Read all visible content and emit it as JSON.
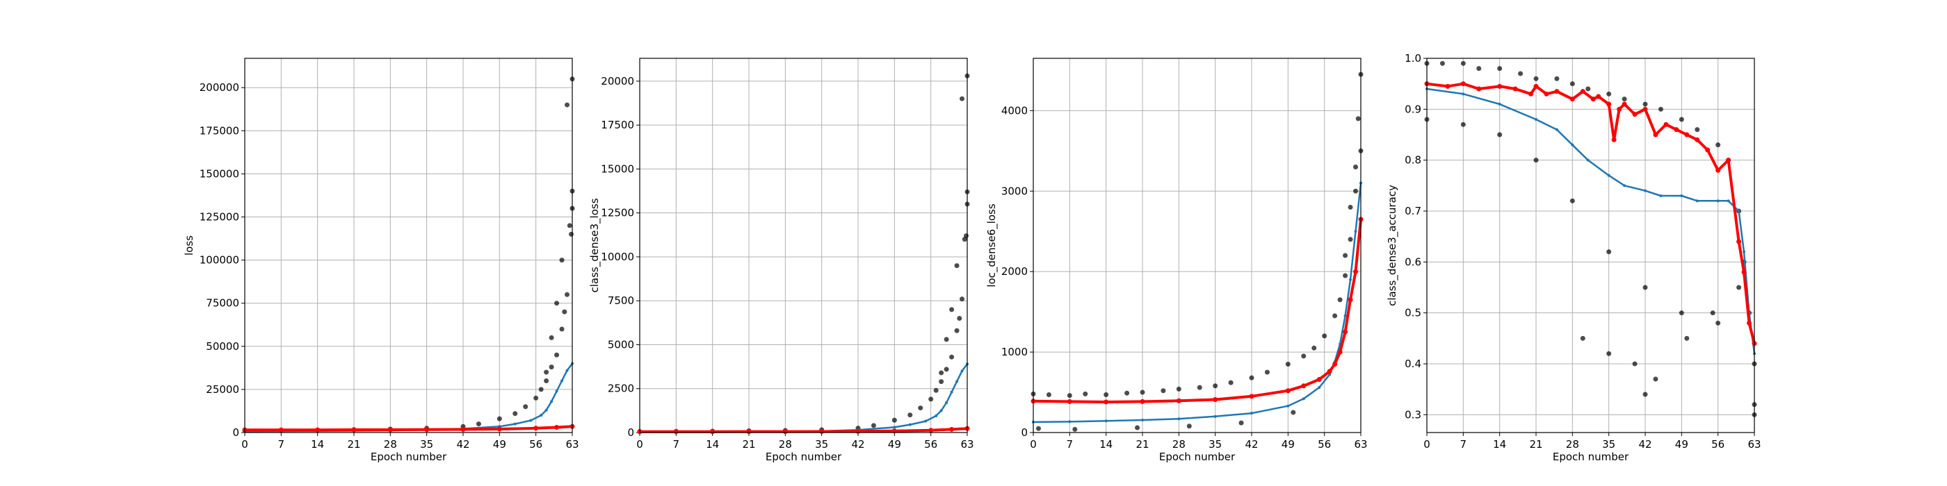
{
  "chart_data": [
    {
      "type": "scatter",
      "ylabel": "loss",
      "xlabel": "Epoch number",
      "xlim": [
        0,
        63
      ],
      "ylim": [
        0,
        217000
      ],
      "xticks": [
        "0",
        "7",
        "14",
        "21",
        "28",
        "35",
        "42",
        "49",
        "56",
        "63"
      ],
      "yticks": [
        "0",
        "25000",
        "50000",
        "75000",
        "100000",
        "125000",
        "150000",
        "175000",
        "200000"
      ],
      "grid": true,
      "series": [
        {
          "kind": "scatter",
          "color": "#000000",
          "x": [
            0,
            7,
            14,
            21,
            28,
            35,
            42,
            45,
            49,
            52,
            54,
            56,
            57,
            58,
            59,
            60,
            61,
            62,
            62.5,
            63,
            63,
            62,
            61,
            60,
            59,
            58,
            63,
            62.8,
            61.5
          ],
          "y": [
            1200,
            1400,
            1500,
            1700,
            2000,
            2500,
            3500,
            5000,
            8000,
            11000,
            15000,
            20000,
            25000,
            30000,
            38000,
            45000,
            60000,
            80000,
            120000,
            140000,
            205000,
            190000,
            100000,
            75000,
            55000,
            35000,
            130000,
            115000,
            70000
          ]
        },
        {
          "kind": "line",
          "color": "#1f77b4",
          "x": [
            0,
            7,
            14,
            21,
            28,
            35,
            42,
            49,
            52,
            55,
            57,
            58,
            59,
            60,
            61,
            62,
            63
          ],
          "y": [
            700,
            800,
            900,
            1000,
            1200,
            1500,
            2200,
            3500,
            5000,
            7000,
            10000,
            13000,
            18000,
            24000,
            30000,
            36000,
            40000
          ]
        },
        {
          "kind": "line",
          "color": "#ff0000",
          "x": [
            0,
            7,
            14,
            21,
            28,
            35,
            42,
            49,
            56,
            60,
            63
          ],
          "y": [
            1500,
            1500,
            1500,
            1600,
            1600,
            1700,
            1800,
            2000,
            2500,
            3000,
            3500
          ]
        }
      ]
    },
    {
      "type": "scatter",
      "ylabel": "class_dense3_loss",
      "xlabel": "Epoch number",
      "xlim": [
        0,
        63
      ],
      "ylim": [
        0,
        21300
      ],
      "xticks": [
        "0",
        "7",
        "14",
        "21",
        "28",
        "35",
        "42",
        "49",
        "56",
        "63"
      ],
      "yticks": [
        "0",
        "2500",
        "5000",
        "7500",
        "10000",
        "12500",
        "15000",
        "17500",
        "20000"
      ],
      "grid": true,
      "series": [
        {
          "kind": "scatter",
          "color": "#000000",
          "x": [
            0,
            7,
            14,
            21,
            28,
            35,
            42,
            45,
            49,
            52,
            54,
            56,
            57,
            58,
            59,
            60,
            61,
            62,
            62.5,
            63,
            63,
            62,
            61,
            60,
            59,
            58,
            63,
            62.8,
            61.5
          ],
          "y": [
            60,
            70,
            80,
            100,
            120,
            160,
            250,
            400,
            700,
            1000,
            1400,
            1900,
            2400,
            2900,
            3600,
            4300,
            5800,
            7600,
            11000,
            13700,
            20300,
            19000,
            9500,
            7000,
            5300,
            3400,
            13000,
            11200,
            6500
          ]
        },
        {
          "kind": "line",
          "color": "#1f77b4",
          "x": [
            0,
            7,
            14,
            21,
            28,
            35,
            42,
            49,
            52,
            55,
            57,
            58,
            59,
            60,
            61,
            62,
            63
          ],
          "y": [
            30,
            35,
            40,
            50,
            60,
            80,
            150,
            300,
            450,
            650,
            950,
            1250,
            1700,
            2300,
            2900,
            3500,
            3900
          ]
        },
        {
          "kind": "line",
          "color": "#ff0000",
          "x": [
            0,
            7,
            14,
            21,
            28,
            35,
            42,
            49,
            56,
            60,
            63
          ],
          "y": [
            50,
            50,
            50,
            55,
            55,
            60,
            70,
            90,
            130,
            180,
            230
          ]
        }
      ]
    },
    {
      "type": "scatter",
      "ylabel": "loc_dense6_loss",
      "xlabel": "Epoch number",
      "xlim": [
        0,
        63
      ],
      "ylim": [
        0,
        4650
      ],
      "xticks": [
        "0",
        "7",
        "14",
        "21",
        "28",
        "35",
        "42",
        "49",
        "56",
        "63"
      ],
      "yticks": [
        "0",
        "1000",
        "2000",
        "3000",
        "4000"
      ],
      "grid": true,
      "series": [
        {
          "kind": "scatter",
          "color": "#000000",
          "x": [
            0,
            3,
            7,
            10,
            14,
            18,
            21,
            25,
            28,
            32,
            35,
            38,
            42,
            45,
            49,
            52,
            54,
            56,
            58,
            59,
            60,
            61,
            62,
            63,
            63,
            62.5,
            62,
            61,
            60,
            1,
            8,
            20,
            30,
            40,
            50
          ],
          "y": [
            480,
            470,
            460,
            480,
            470,
            490,
            500,
            520,
            540,
            560,
            580,
            620,
            680,
            750,
            850,
            950,
            1050,
            1200,
            1450,
            1650,
            1950,
            2400,
            3000,
            3500,
            4450,
            3900,
            3300,
            2800,
            2200,
            50,
            40,
            60,
            80,
            120,
            250
          ]
        },
        {
          "kind": "line",
          "color": "#1f77b4",
          "x": [
            0,
            7,
            14,
            21,
            28,
            35,
            42,
            49,
            52,
            55,
            57,
            58,
            59,
            60,
            61,
            62,
            63
          ],
          "y": [
            130,
            135,
            145,
            155,
            170,
            200,
            240,
            330,
            420,
            560,
            720,
            880,
            1100,
            1450,
            1900,
            2500,
            3100
          ]
        },
        {
          "kind": "line",
          "color": "#ff0000",
          "x": [
            0,
            7,
            14,
            21,
            28,
            35,
            42,
            49,
            52,
            55,
            57,
            58,
            59,
            60,
            61,
            62,
            63
          ],
          "y": [
            390,
            385,
            380,
            385,
            395,
            410,
            450,
            520,
            580,
            660,
            760,
            850,
            1000,
            1250,
            1650,
            2000,
            2650
          ]
        }
      ]
    },
    {
      "type": "scatter",
      "ylabel": "class_dense3_accuracy",
      "xlabel": "Epoch number",
      "xlim": [
        0,
        63
      ],
      "ylim": [
        0.265,
        1.0
      ],
      "xticks": [
        "0",
        "7",
        "14",
        "21",
        "28",
        "35",
        "42",
        "49",
        "56",
        "63"
      ],
      "yticks": [
        "0.3",
        "0.4",
        "0.5",
        "0.6",
        "0.7",
        "0.8",
        "0.9",
        "1.0"
      ],
      "grid": true,
      "series": [
        {
          "kind": "scatter",
          "color": "#000000",
          "x": [
            0,
            3,
            7,
            10,
            14,
            18,
            21,
            25,
            28,
            31,
            35,
            38,
            42,
            45,
            49,
            52,
            56,
            58,
            60,
            61,
            62,
            63,
            0,
            7,
            14,
            21,
            28,
            35,
            42,
            49,
            56,
            63,
            30,
            35,
            40,
            42,
            44,
            50,
            55,
            60,
            63
          ],
          "y": [
            0.99,
            0.99,
            0.99,
            0.98,
            0.98,
            0.97,
            0.96,
            0.96,
            0.95,
            0.94,
            0.93,
            0.92,
            0.91,
            0.9,
            0.88,
            0.86,
            0.83,
            0.8,
            0.7,
            0.6,
            0.5,
            0.4,
            0.88,
            0.87,
            0.85,
            0.8,
            0.72,
            0.62,
            0.55,
            0.5,
            0.48,
            0.3,
            0.45,
            0.42,
            0.4,
            0.34,
            0.37,
            0.45,
            0.5,
            0.55,
            0.32
          ]
        },
        {
          "kind": "line",
          "color": "#1f77b4",
          "x": [
            0,
            7,
            14,
            21,
            25,
            28,
            31,
            35,
            38,
            42,
            45,
            49,
            52,
            56,
            58,
            60,
            61,
            62,
            63
          ],
          "y": [
            0.94,
            0.93,
            0.91,
            0.88,
            0.86,
            0.83,
            0.8,
            0.77,
            0.75,
            0.74,
            0.73,
            0.73,
            0.72,
            0.72,
            0.72,
            0.7,
            0.62,
            0.5,
            0.42
          ]
        },
        {
          "kind": "line",
          "color": "#ff0000",
          "x": [
            0,
            4,
            7,
            10,
            14,
            17,
            20,
            21,
            23,
            25,
            28,
            30,
            32,
            33,
            35,
            36,
            37,
            38,
            40,
            42,
            44,
            46,
            48,
            50,
            52,
            54,
            56,
            58,
            60,
            61,
            62,
            63
          ],
          "y": [
            0.95,
            0.945,
            0.95,
            0.94,
            0.945,
            0.94,
            0.93,
            0.945,
            0.93,
            0.935,
            0.92,
            0.935,
            0.92,
            0.925,
            0.91,
            0.84,
            0.9,
            0.91,
            0.89,
            0.9,
            0.85,
            0.87,
            0.86,
            0.85,
            0.84,
            0.82,
            0.78,
            0.8,
            0.64,
            0.58,
            0.48,
            0.44
          ]
        }
      ]
    }
  ]
}
